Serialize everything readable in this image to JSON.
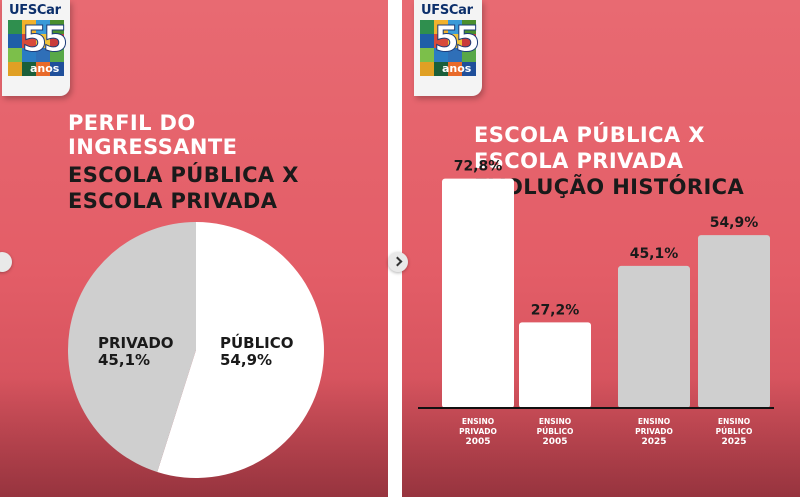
{
  "left_panel": {
    "logo_text": "UFSCar",
    "logo_number": "55",
    "logo_sub": "anos",
    "title_line1": "PERFIL DO",
    "title_line2": "INGRESSANTE",
    "title_line3": "ESCOLA PÚBLICA X",
    "title_line4": "ESCOLA PRIVADA"
  },
  "right_panel": {
    "logo_text": "UFSCar",
    "logo_number": "55",
    "logo_sub": "anos",
    "title_line1": "ESCOLA PÚBLICA X",
    "title_line2": "ESCOLA PRIVADA",
    "title_line3": "EVOLUÇÃO HISTÓRICA"
  },
  "colors": {
    "background": "#e35d67",
    "slice_public": "#ffffff",
    "slice_private": "#cfcfcf",
    "bar_light": "#ffffff",
    "bar_gray": "#cfcfcf",
    "text_dark": "#1a1a1a"
  },
  "chart_data": [
    {
      "type": "pie",
      "slices": [
        {
          "label": "PÚBLICO",
          "value": 54.9,
          "value_label": "54,9%",
          "color": "#ffffff"
        },
        {
          "label": "PRIVADO",
          "value": 45.1,
          "value_label": "45,1%",
          "color": "#cfcfcf"
        }
      ]
    },
    {
      "type": "bar",
      "categories": [
        [
          "ENSINO",
          "PRIVADO",
          "2005"
        ],
        [
          "ENSINO",
          "PÚBLICO",
          "2005"
        ],
        [
          "ENSINO",
          "PRIVADO",
          "2025"
        ],
        [
          "ENSINO",
          "PÚBLICO",
          "2025"
        ]
      ],
      "values": [
        72.8,
        27.2,
        45.1,
        54.9
      ],
      "value_labels": [
        "72,8%",
        "27,2%",
        "45,1%",
        "54,9%"
      ],
      "colors": [
        "#ffffff",
        "#ffffff",
        "#cfcfcf",
        "#cfcfcf"
      ],
      "ylim": [
        0,
        80
      ],
      "grid": false
    }
  ]
}
